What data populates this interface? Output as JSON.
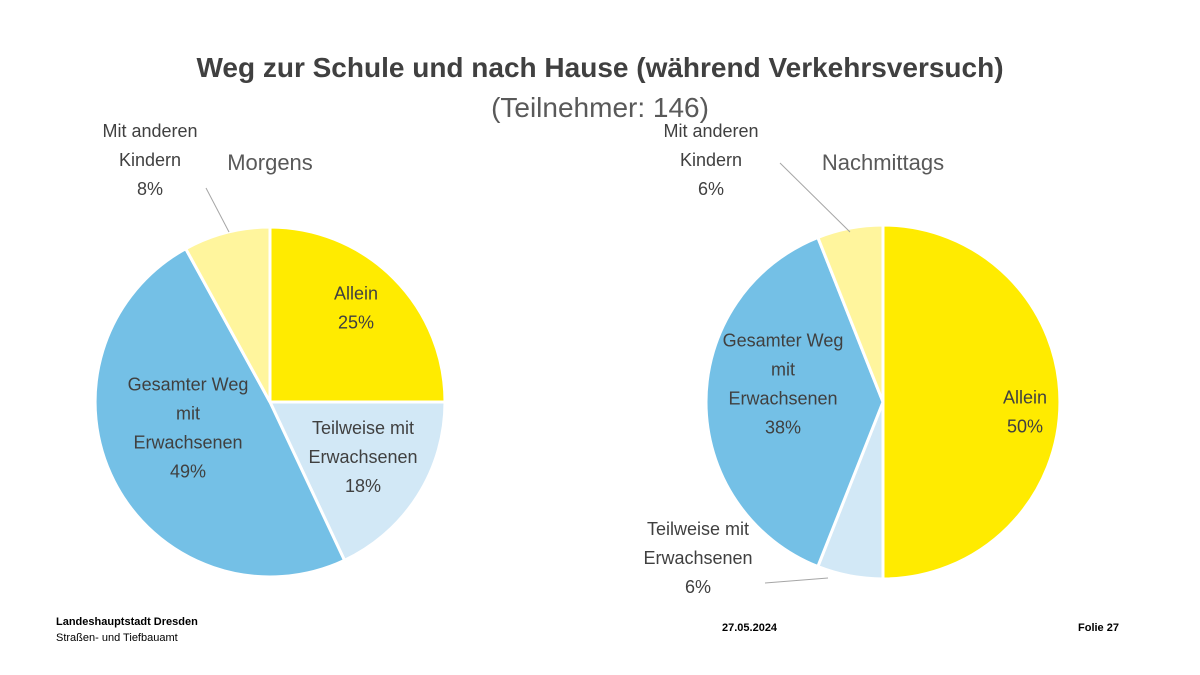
{
  "header": {
    "title": "Weg zur Schule und nach Hause (während Verkehrsversuch)",
    "subtitle": "(Teilnehmer: 146)"
  },
  "chart_data": [
    {
      "type": "pie",
      "title": "Morgens",
      "slices": [
        {
          "label": [
            "Allein"
          ],
          "value": 25,
          "value_label": "25%",
          "color": "#FFEB00"
        },
        {
          "label": [
            "Teilweise mit",
            "Erwachsenen"
          ],
          "value": 18,
          "value_label": "18%",
          "color": "#D2E8F6"
        },
        {
          "label": [
            "Gesamter Weg",
            "mit",
            "Erwachsenen"
          ],
          "value": 49,
          "value_label": "49%",
          "color": "#74C0E6"
        },
        {
          "label": [
            "Mit anderen",
            "Kindern"
          ],
          "value": 8,
          "value_label": "8%",
          "color": "#FFF59D"
        }
      ]
    },
    {
      "type": "pie",
      "title": "Nachmittags",
      "slices": [
        {
          "label": [
            "Allein"
          ],
          "value": 50,
          "value_label": "50%",
          "color": "#FFEB00"
        },
        {
          "label": [
            "Teilweise mit",
            "Erwachsenen"
          ],
          "value": 6,
          "value_label": "6%",
          "color": "#D2E8F6"
        },
        {
          "label": [
            "Gesamter Weg",
            "mit",
            "Erwachsenen"
          ],
          "value": 38,
          "value_label": "38%",
          "color": "#74C0E6"
        },
        {
          "label": [
            "Mit anderen",
            "Kindern"
          ],
          "value": 6,
          "value_label": "6%",
          "color": "#FFF59D"
        }
      ]
    }
  ],
  "footer": {
    "organization": "Landeshauptstadt Dresden",
    "department": "Straßen- und Tiefbauamt",
    "date": "27.05.2024",
    "slide": "Folie 27"
  }
}
